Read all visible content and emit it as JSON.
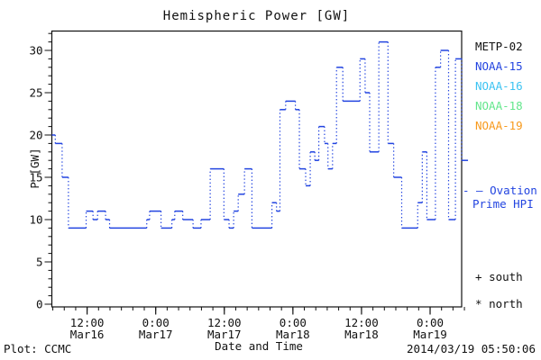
{
  "title": "Hemispheric Power [GW]",
  "footer": {
    "credit": "Plot: CCMC",
    "timestamp": "2014/03/19 05:50:06"
  },
  "legend": {
    "satellites": [
      {
        "label": "METP-02",
        "color": "#111111"
      },
      {
        "label": "NOAA-15",
        "color": "#2244e0"
      },
      {
        "label": "NOAA-16",
        "color": "#3cc3f2"
      },
      {
        "label": "NOAA-18",
        "color": "#63e68c"
      },
      {
        "label": "NOAA-19",
        "color": "#f79a1d"
      }
    ],
    "ovation": {
      "line1": "- — Ovation",
      "line2": "Prime HPI",
      "color": "#2244e0"
    },
    "markers": [
      {
        "symbol": "+",
        "label": "south"
      },
      {
        "symbol": "*",
        "label": "north"
      }
    ]
  },
  "chart_data": {
    "type": "line",
    "style": "step-post; solid horizontal segments with dotted vertical connectors",
    "series_name": "Ovation Prime HPI",
    "color": "#2244e0",
    "title": "Hemispheric Power [GW]",
    "xlabel": "Date and Time",
    "ylabel": "P [GW]",
    "x_axis": {
      "unit": "hours from start of plotted window (Mar16 ~05:50)",
      "range": [
        0,
        72.2
      ],
      "minor_tick_every_h": 2,
      "major_ticks": [
        {
          "t": 6.17,
          "time": "12:00",
          "date": "Mar16"
        },
        {
          "t": 18.17,
          "time": "0:00",
          "date": "Mar17"
        },
        {
          "t": 30.17,
          "time": "12:00",
          "date": "Mar17"
        },
        {
          "t": 42.17,
          "time": "0:00",
          "date": "Mar18"
        },
        {
          "t": 54.17,
          "time": "12:00",
          "date": "Mar18"
        },
        {
          "t": 66.17,
          "time": "0:00",
          "date": "Mar19"
        }
      ]
    },
    "y_axis": {
      "range": [
        0,
        32.3
      ],
      "major_ticks": [
        0,
        5,
        10,
        15,
        20,
        25,
        30
      ],
      "minor_tick_every": 1
    },
    "steps": [
      [
        0.0,
        20
      ],
      [
        0.6,
        19
      ],
      [
        1.8,
        15
      ],
      [
        2.9,
        9
      ],
      [
        6.0,
        11
      ],
      [
        7.2,
        10
      ],
      [
        8.0,
        11
      ],
      [
        9.4,
        10
      ],
      [
        10.1,
        9
      ],
      [
        16.6,
        10
      ],
      [
        17.1,
        11
      ],
      [
        19.1,
        9
      ],
      [
        21.0,
        10
      ],
      [
        21.5,
        11
      ],
      [
        22.9,
        10
      ],
      [
        24.7,
        9
      ],
      [
        26.1,
        10
      ],
      [
        27.7,
        16
      ],
      [
        30.1,
        10
      ],
      [
        31.0,
        9
      ],
      [
        31.8,
        11
      ],
      [
        32.6,
        13
      ],
      [
        33.7,
        16
      ],
      [
        35.0,
        9
      ],
      [
        38.5,
        12
      ],
      [
        39.3,
        11
      ],
      [
        39.9,
        23
      ],
      [
        40.9,
        24
      ],
      [
        42.6,
        23
      ],
      [
        43.3,
        16
      ],
      [
        44.4,
        14
      ],
      [
        45.2,
        18
      ],
      [
        46.0,
        17
      ],
      [
        46.7,
        21
      ],
      [
        47.7,
        19
      ],
      [
        48.3,
        16
      ],
      [
        49.1,
        19
      ],
      [
        49.8,
        28
      ],
      [
        50.9,
        24
      ],
      [
        53.9,
        29
      ],
      [
        54.8,
        25
      ],
      [
        55.6,
        18
      ],
      [
        57.2,
        31
      ],
      [
        58.8,
        19
      ],
      [
        59.8,
        15
      ],
      [
        61.2,
        9
      ],
      [
        64.0,
        12
      ],
      [
        64.8,
        18
      ],
      [
        65.6,
        10
      ],
      [
        67.1,
        28
      ],
      [
        68.0,
        30
      ],
      [
        69.4,
        10
      ],
      [
        70.6,
        29
      ],
      [
        71.7,
        17
      ]
    ],
    "end_t": 72.8
  }
}
